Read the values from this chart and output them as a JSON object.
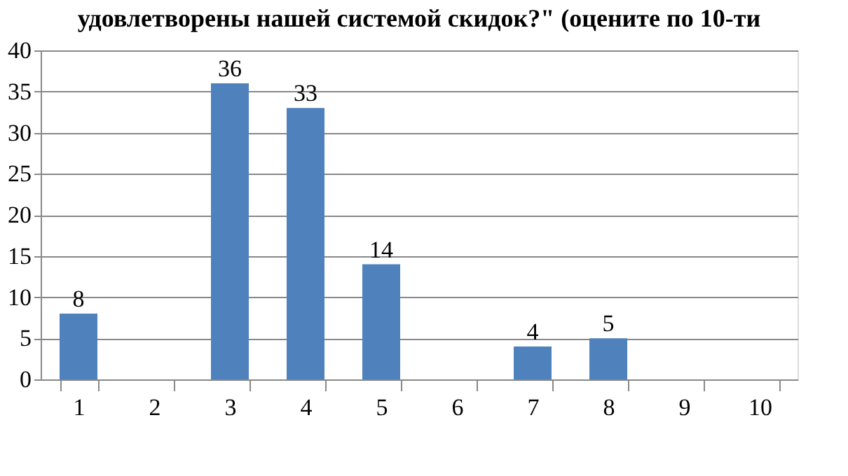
{
  "chart_data": {
    "type": "bar",
    "title": "удовлетворены нашей системой скидок?\" (оцените по 10-ти",
    "categories": [
      "1",
      "2",
      "3",
      "4",
      "5",
      "6",
      "7",
      "8",
      "9",
      "10"
    ],
    "values": [
      8,
      0,
      36,
      33,
      14,
      0,
      4,
      5,
      0,
      0
    ],
    "value_labels": [
      "8",
      null,
      "36",
      "33",
      "14",
      null,
      "4",
      "5",
      null,
      null
    ],
    "color": "#4f81bd",
    "ylim": [
      0,
      40
    ],
    "yticks": [
      0,
      5,
      10,
      15,
      20,
      25,
      30,
      35,
      40
    ],
    "grid": "y"
  }
}
